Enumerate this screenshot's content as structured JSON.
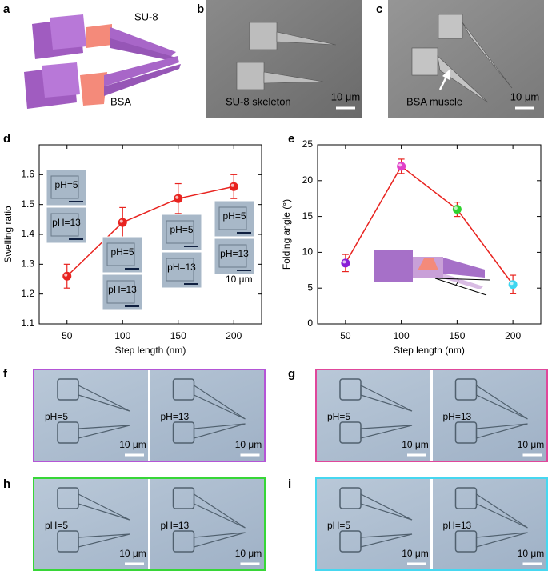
{
  "panel_labels": [
    "a",
    "b",
    "c",
    "d",
    "e",
    "f",
    "g",
    "h",
    "i"
  ],
  "panel_a": {
    "top_label": "SU-8",
    "bottom_label": "BSA"
  },
  "panel_b": {
    "caption": "SU-8 skeleton",
    "scale": "10 μm"
  },
  "panel_c": {
    "caption": "BSA muscle",
    "scale": "10 μm"
  },
  "d_insets": [
    {
      "top": "pH=5",
      "bottom": "pH=13"
    },
    {
      "top": "pH=5",
      "bottom": "pH=13"
    },
    {
      "top": "pH=5",
      "bottom": "pH=13"
    },
    {
      "top": "pH=5",
      "bottom": "pH=13"
    }
  ],
  "d_inset_scale": "10 μm",
  "chart_data": [
    {
      "type": "line",
      "x_label": "Step length (nm)",
      "y_label": "Swelling ratio",
      "x": [
        50,
        100,
        150,
        200
      ],
      "values": [
        1.26,
        1.44,
        1.52,
        1.56
      ],
      "errors": [
        0.04,
        0.05,
        0.05,
        0.04
      ],
      "color": "#e8231f",
      "marker_colors": [
        "#e8231f",
        "#e8231f",
        "#e8231f",
        "#e8231f"
      ],
      "xlim": [
        25,
        225
      ],
      "xticks": [
        50,
        100,
        150,
        200
      ],
      "ylim": [
        1.1,
        1.7
      ],
      "yticks": [
        1.1,
        1.2,
        1.3,
        1.4,
        1.5,
        1.6
      ]
    },
    {
      "type": "line",
      "x_label": "Step length (nm)",
      "y_label": "Folding angle (°)",
      "x": [
        50,
        100,
        150,
        200
      ],
      "values": [
        8.5,
        22,
        16,
        5.5
      ],
      "errors": [
        1.2,
        1,
        1,
        1.3
      ],
      "color": "#e8231f",
      "marker_colors": [
        "#8a1fd6",
        "#e040c8",
        "#2fd22f",
        "#3fd6f0"
      ],
      "xlim": [
        25,
        225
      ],
      "xticks": [
        50,
        100,
        150,
        200
      ],
      "ylim": [
        0,
        25
      ],
      "yticks": [
        0,
        5,
        10,
        15,
        20,
        25
      ]
    }
  ],
  "micrographs": [
    {
      "left": "pH=5",
      "right": "pH=13",
      "scale": "10 μm",
      "border_color": "#b455d6"
    },
    {
      "left": "pH=5",
      "right": "pH=13",
      "scale": "10 μm",
      "border_color": "#e0479b"
    },
    {
      "left": "pH=5",
      "right": "pH=13",
      "scale": "10 μm",
      "border_color": "#37d637"
    },
    {
      "left": "pH=5",
      "right": "pH=13",
      "scale": "10 μm",
      "border_color": "#46d7f0"
    }
  ]
}
